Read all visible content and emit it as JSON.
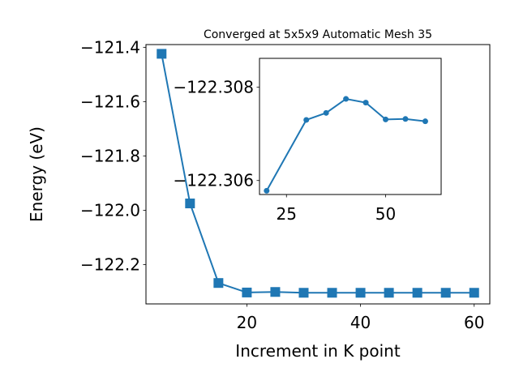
{
  "chart_data": [
    {
      "type": "line",
      "title": "Converged at 5x5x9 Automatic Mesh 35",
      "xlabel": "Increment in K point",
      "ylabel": "Energy (eV)",
      "xlim": [
        2.25,
        62.75
      ],
      "ylim": [
        -122.345,
        -121.39
      ],
      "xticks": [
        20,
        40,
        60
      ],
      "xtick_labels": [
        "20",
        "40",
        "60"
      ],
      "yticks": [
        -121.4,
        -121.6,
        -121.8,
        -122.0,
        -122.2
      ],
      "ytick_labels": [
        "−121.4",
        "−121.6",
        "−121.8",
        "−122.0",
        "−122.2"
      ],
      "grid": false,
      "marker": "square",
      "color": "#1f77b4",
      "series": [
        {
          "x": [
            5,
            10,
            15,
            20,
            25,
            30,
            35,
            40,
            45,
            50,
            55,
            60
          ],
          "y": [
            -121.424,
            -121.975,
            -122.268,
            -122.303,
            -122.301,
            -122.304,
            -122.304,
            -122.304,
            -122.304,
            -122.304,
            -122.304,
            -122.304
          ]
        }
      ]
    },
    {
      "type": "line",
      "title": "",
      "xlabel": "",
      "ylabel": "",
      "xlim": [
        18.2,
        64.0
      ],
      "ylim": [
        -122.3057,
        -122.30862
      ],
      "xticks": [
        25,
        50
      ],
      "xtick_labels": [
        "25",
        "50"
      ],
      "yticks": [
        -122.308,
        -122.306
      ],
      "ytick_labels": [
        "−122.308",
        "−122.306"
      ],
      "grid": false,
      "marker": "circle",
      "color": "#1f77b4",
      "series": [
        {
          "x": [
            20,
            30,
            35,
            40,
            45,
            50,
            55,
            60
          ],
          "y": [
            -122.30578,
            -122.3073,
            -122.30745,
            -122.30775,
            -122.30767,
            -122.30731,
            -122.30732,
            -122.30727
          ]
        }
      ]
    }
  ]
}
